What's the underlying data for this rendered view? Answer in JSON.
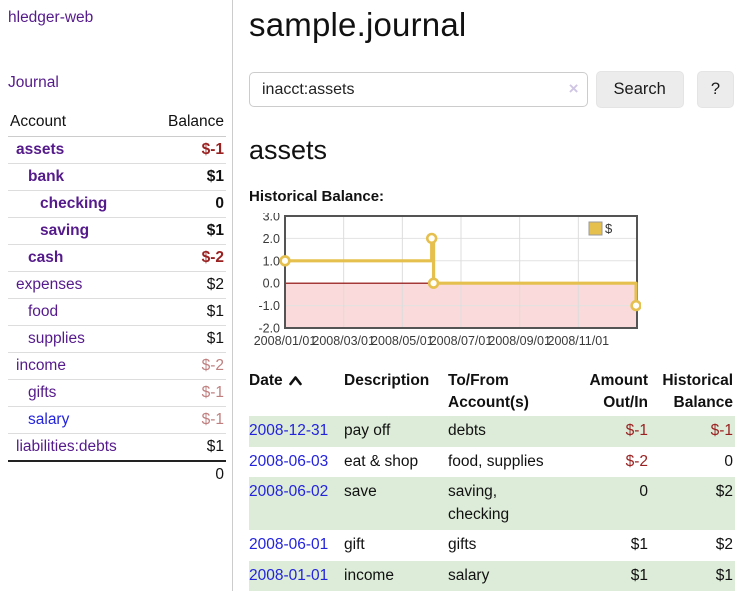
{
  "sidebar": {
    "brand": "hledger-web",
    "journal_label": "Journal",
    "accounts_table": {
      "account_header": "Account",
      "balance_header": "Balance",
      "rows": [
        {
          "name": "assets",
          "depth": 0,
          "bold": true,
          "balance": "$-1",
          "balance_style": "negative"
        },
        {
          "name": "bank",
          "depth": 1,
          "bold": true,
          "balance": "$1",
          "balance_style": "normal"
        },
        {
          "name": "checking",
          "depth": 2,
          "bold": true,
          "balance": "0",
          "balance_style": "normal"
        },
        {
          "name": "saving",
          "depth": 2,
          "bold": true,
          "balance": "$1",
          "balance_style": "normal"
        },
        {
          "name": "cash",
          "depth": 1,
          "bold": true,
          "balance": "$-2",
          "balance_style": "negative"
        },
        {
          "name": "expenses",
          "depth": 0,
          "bold": false,
          "balance": "$2",
          "balance_style": "normal"
        },
        {
          "name": "food",
          "depth": 1,
          "bold": false,
          "balance": "$1",
          "balance_style": "normal"
        },
        {
          "name": "supplies",
          "depth": 1,
          "bold": false,
          "balance": "$1",
          "balance_style": "normal"
        },
        {
          "name": "income",
          "depth": 0,
          "bold": false,
          "balance": "$-2",
          "balance_style": "negative-light"
        },
        {
          "name": "gifts",
          "depth": 1,
          "bold": false,
          "balance": "$-1",
          "balance_style": "negative-light"
        },
        {
          "name": "salary",
          "depth": 1,
          "bold": false,
          "link_style": "unvisited",
          "balance": "$-1",
          "balance_style": "negative-light"
        },
        {
          "name": "liabilities:debts",
          "depth": 0,
          "bold": false,
          "balance": "$1",
          "balance_style": "normal"
        }
      ],
      "total": "0"
    }
  },
  "header": {
    "title": "sample.journal"
  },
  "search": {
    "value": "inacct:assets",
    "clear_icon": "×",
    "button_label": "Search",
    "help_label": "?"
  },
  "register": {
    "heading": "assets",
    "chart_title": "Historical Balance:",
    "table": {
      "headers": [
        {
          "label": "Date",
          "sorted": "asc",
          "align": "left"
        },
        {
          "label": "Description",
          "align": "left"
        },
        {
          "label": "To/From Account(s)",
          "align": "left"
        },
        {
          "label": "Amount Out/In",
          "align": "right"
        },
        {
          "label": "Historical Balance",
          "align": "right"
        }
      ],
      "rows": [
        {
          "date": "2008-12-31",
          "description": "pay off",
          "accounts": "debts",
          "amount": "$-1",
          "amount_style": "negative",
          "balance": "$-1",
          "balance_style": "negative",
          "shaded": true
        },
        {
          "date": "2008-06-03",
          "description": "eat & shop",
          "accounts": "food, supplies",
          "amount": "$-2",
          "amount_style": "negative",
          "balance": "0",
          "balance_style": "normal",
          "shaded": false
        },
        {
          "date": "2008-06-02",
          "description": "save",
          "accounts": "saving, checking",
          "amount": "0",
          "amount_style": "normal",
          "balance": "$2",
          "balance_style": "normal",
          "shaded": true
        },
        {
          "date": "2008-06-01",
          "description": "gift",
          "accounts": "gifts",
          "amount": "$1",
          "amount_style": "normal",
          "balance": "$2",
          "balance_style": "normal",
          "shaded": false
        },
        {
          "date": "2008-01-01",
          "description": "income",
          "accounts": "salary",
          "amount": "$1",
          "amount_style": "normal",
          "balance": "$1",
          "balance_style": "normal",
          "shaded": true
        }
      ]
    }
  },
  "chart_data": {
    "type": "line",
    "title": "Historical Balance:",
    "step": true,
    "series": [
      {
        "name": "$",
        "color": "#e6c04f",
        "points": [
          [
            "2008-01-01",
            1
          ],
          [
            "2008-06-01",
            2
          ],
          [
            "2008-06-03",
            0
          ],
          [
            "2008-12-31",
            -1
          ]
        ]
      }
    ],
    "xlim": [
      "2008-01-01",
      "2008-12-31"
    ],
    "ylim": [
      -2,
      3
    ],
    "yticks": [
      "3.0",
      "2.0",
      "1.0",
      "0.0",
      "-1.0",
      "-2.0"
    ],
    "xticks": [
      {
        "label": "2008/01/01",
        "month": 0
      },
      {
        "label": "2008/03/01",
        "month": 2
      },
      {
        "label": "2008/05/01",
        "month": 4
      },
      {
        "label": "2008/07/01",
        "month": 6
      },
      {
        "label": "2008/09/01",
        "month": 8
      },
      {
        "label": "2008/11/01",
        "month": 10
      }
    ],
    "grid": true,
    "legend": {
      "position": "top-right",
      "label": "$"
    },
    "negative_region_fill": "#fadada",
    "zero_line_color": "#8b0000"
  },
  "colors": {
    "link_purple": "#551a8b",
    "link_blue": "#2323dd",
    "negative": "#9a2121",
    "negative_light": "#c07f7f",
    "row_shade_green": "#ddecd9",
    "chart_line_gold": "#e6c04f",
    "chart_negative_fill": "#fadada",
    "chart_zero_line": "#8b0000",
    "button_bg": "#ececec"
  }
}
